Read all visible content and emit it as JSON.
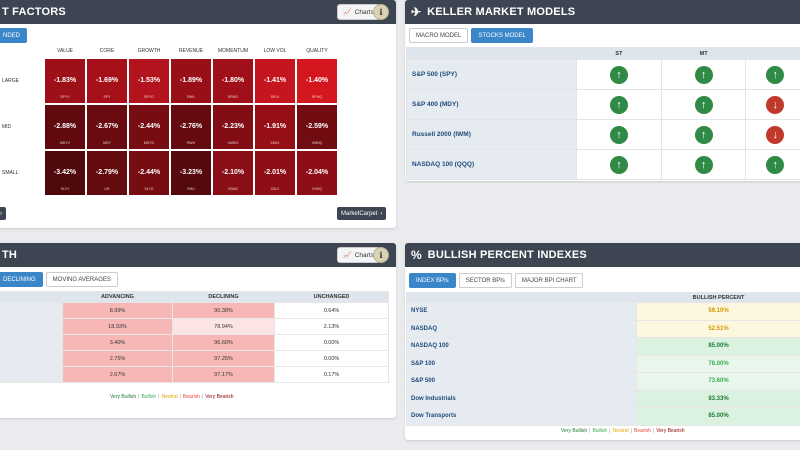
{
  "colors": {
    "header_bg": "#3d4552",
    "accent_blue": "#3a86c8",
    "up_green": "#2f8a45",
    "down_red": "#c0392b",
    "very_bullish": "#1e7b34",
    "bullish": "#3bab52",
    "neutral": "#e0a800",
    "bearish": "#e74c3c",
    "very_bearish": "#8b0000"
  },
  "factors": {
    "title": "T FACTORS",
    "charts_label": "Charts",
    "info_label": "i",
    "tab_label": "NDED",
    "columns": [
      "VALUE",
      "CORE",
      "GROWTH",
      "REVENUE",
      "MOMENTUM",
      "LOW VOL",
      "QUALITY"
    ],
    "rows": [
      {
        "label": "LARGE",
        "cells": [
          {
            "v": "-1.83%",
            "t": "SPYV",
            "c": "#9e1018"
          },
          {
            "v": "-1.69%",
            "t": "SPY",
            "c": "#a61119"
          },
          {
            "v": "-1.53%",
            "t": "SPYG",
            "c": "#b3131c"
          },
          {
            "v": "-1.89%",
            "t": "RWL",
            "c": "#990f17"
          },
          {
            "v": "-1.80%",
            "t": "SPMO",
            "c": "#a01018"
          },
          {
            "v": "-1.41%",
            "t": "SPLV",
            "c": "#c5151f"
          },
          {
            "v": "-1.40%",
            "t": "SPHQ",
            "c": "#d4161f"
          }
        ]
      },
      {
        "label": "MID",
        "cells": [
          {
            "v": "-2.88%",
            "t": "MDYV",
            "c": "#600a0f"
          },
          {
            "v": "-2.67%",
            "t": "MDY",
            "c": "#6a0b11"
          },
          {
            "v": "-2.44%",
            "t": "MDYG",
            "c": "#780c13"
          },
          {
            "v": "-2.76%",
            "t": "RWK",
            "c": "#650b10"
          },
          {
            "v": "-2.23%",
            "t": "XMMO",
            "c": "#820d15"
          },
          {
            "v": "-1.91%",
            "t": "XMLV",
            "c": "#960f17"
          },
          {
            "v": "-2.59%",
            "t": "XMHQ",
            "c": "#700c12"
          }
        ]
      },
      {
        "label": "SMALL",
        "cells": [
          {
            "v": "-3.42%",
            "t": "SLYV",
            "c": "#4f080c"
          },
          {
            "v": "-2.79%",
            "t": "IJR",
            "c": "#640b10"
          },
          {
            "v": "-2.44%",
            "t": "SLYG",
            "c": "#780c13"
          },
          {
            "v": "-3.23%",
            "t": "RWJ",
            "c": "#55090d"
          },
          {
            "v": "-2.10%",
            "t": "XSMO",
            "c": "#8a0e16"
          },
          {
            "v": "-2.01%",
            "t": "XSLV",
            "c": "#8f0e16"
          },
          {
            "v": "-2.04%",
            "t": "XSHQ",
            "c": "#8d0e16"
          }
        ]
      }
    ],
    "prev_label": "›",
    "marketcarpet_label": "MarketCarpet"
  },
  "models": {
    "title": "KELLER MARKET MODELS",
    "tabs": [
      "MACRO MODEL",
      "STOCKS MODEL"
    ],
    "headers": [
      "",
      "ST",
      "MT",
      ""
    ],
    "rows": [
      {
        "name": "S&P 500 (SPY)",
        "signals": [
          "up",
          "up",
          "up"
        ]
      },
      {
        "name": "S&P 400 (MDY)",
        "signals": [
          "up",
          "up",
          "down"
        ]
      },
      {
        "name": "Russell 2000 (IWM)",
        "signals": [
          "up",
          "up",
          "down"
        ]
      },
      {
        "name": "NASDAQ 100 (QQQ)",
        "signals": [
          "up",
          "up",
          "up"
        ]
      }
    ]
  },
  "breadth": {
    "title": "TH",
    "charts_label": "Charts",
    "info_label": "i",
    "tabs": [
      "DECLINING",
      "MOVING AVERAGES"
    ],
    "headers": [
      "",
      "ADVANCING",
      "DECLINING",
      "UNCHANGED"
    ],
    "rows": [
      {
        "adv": "8.99%",
        "dec": "90.38%",
        "unc": "0.64%"
      },
      {
        "adv": "18.93%",
        "dec": "78.94%",
        "unc": "2.13%"
      },
      {
        "adv": "3.40%",
        "dec": "96.60%",
        "unc": "0.00%"
      },
      {
        "adv": "2.75%",
        "dec": "97.25%",
        "unc": "0.00%"
      },
      {
        "adv": "2.67%",
        "dec": "97.17%",
        "unc": "0.17%"
      }
    ],
    "legend": [
      "Very Bullish",
      "Bullish",
      "Neutral",
      "Bearish",
      "Very Bearish"
    ]
  },
  "bpi": {
    "title": "BULLISH PERCENT INDEXES",
    "tabs": [
      "INDEX BPIs",
      "SECTOR BPIs",
      "MAJOR BPI CHART"
    ],
    "headers": [
      "",
      "BULLISH PERCENT"
    ],
    "rows": [
      {
        "name": "NYSE",
        "val": "59.10%",
        "bg": "#fdf7e0",
        "fg": "#d29a00"
      },
      {
        "name": "NASDAQ",
        "val": "52.51%",
        "bg": "#fdf7e0",
        "fg": "#d29a00"
      },
      {
        "name": "NASDAQ 100",
        "val": "85.00%",
        "bg": "#dcf2e1",
        "fg": "#1e7b34"
      },
      {
        "name": "S&P 100",
        "val": "78.00%",
        "bg": "#e8f6eb",
        "fg": "#3bab52"
      },
      {
        "name": "S&P 500",
        "val": "73.60%",
        "bg": "#e8f6eb",
        "fg": "#3bab52"
      },
      {
        "name": "Dow Industrials",
        "val": "83.33%",
        "bg": "#dcf2e1",
        "fg": "#1e7b34"
      },
      {
        "name": "Dow Transports",
        "val": "85.00%",
        "bg": "#dcf2e1",
        "fg": "#1e7b34"
      }
    ],
    "legend": [
      "Very Bullish",
      "Bullish",
      "Neutral",
      "Bearish",
      "Very Bearish"
    ]
  }
}
